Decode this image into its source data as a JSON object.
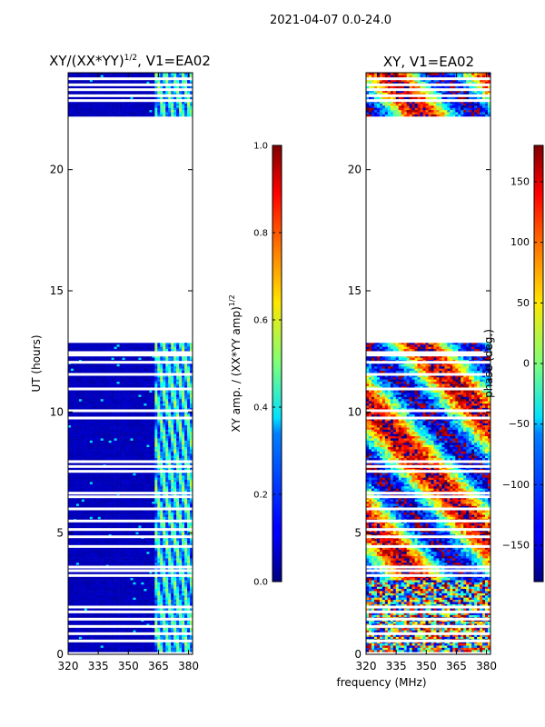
{
  "figure": {
    "suptitle": "2021-04-07 0.0-24.0",
    "shared_xlabel": "frequency (MHz)"
  },
  "chart_data": [
    {
      "type": "heatmap",
      "title_main": "XY/(XX*YY)",
      "title_sup": "1/2",
      "title_tail": ", V1=EA02",
      "ylabel": "UT (hours)",
      "xlim": [
        320,
        382
      ],
      "ylim": [
        0,
        24
      ],
      "xticks": [
        320,
        335,
        350,
        365,
        380
      ],
      "yticks": [
        0,
        5,
        10,
        15,
        20
      ],
      "colormap": "jet",
      "colorbar": {
        "label_main": "XY amp. / (XX*YY amp)",
        "label_sup": "1/2",
        "min": 0.0,
        "max": 1.0,
        "ticks": [
          "0.0",
          "0.2",
          "0.4",
          "0.6",
          "0.8",
          "1.0"
        ],
        "tick_values": [
          0.0,
          0.2,
          0.4,
          0.6,
          0.8,
          1.0
        ]
      },
      "data_coverage_hours": [
        [
          0.1,
          12.85
        ],
        [
          22.2,
          24.0
        ]
      ],
      "gap_hours": [
        0.55,
        0.85,
        1.15,
        1.45,
        1.75,
        1.95,
        3.25,
        3.45,
        3.6,
        4.45,
        4.85,
        5.15,
        5.5,
        6.0,
        6.5,
        6.65,
        7.55,
        7.75,
        7.95,
        9.75,
        10.05,
        10.95,
        11.55,
        12.05,
        12.35,
        12.45,
        22.85,
        23.05,
        23.3,
        23.5,
        23.75
      ],
      "value_profile": "mostly low amplitude (~0.05) below 363 MHz; elevated amplitude (~0.3-0.6) between 363 and 382 MHz with streaks"
    },
    {
      "type": "heatmap",
      "title_main": "XY, V1=EA02",
      "ylim": [
        0,
        24
      ],
      "xlim": [
        320,
        382
      ],
      "xticks": [
        320,
        335,
        350,
        365,
        380
      ],
      "yticks": [
        0,
        5,
        10,
        15,
        20
      ],
      "colormap": "jet",
      "colorbar": {
        "label_main": "phase (deg.)",
        "min": -180,
        "max": 180,
        "ticks": [
          "−150",
          "−100",
          "−50",
          "0",
          "50",
          "100",
          "150"
        ],
        "tick_values": [
          -150,
          -100,
          -50,
          0,
          50,
          100,
          150
        ]
      },
      "data_coverage_hours": [
        [
          0.1,
          12.85
        ],
        [
          22.2,
          24.0
        ]
      ],
      "gap_hours": [
        0.55,
        0.85,
        1.15,
        1.45,
        1.75,
        1.95,
        3.25,
        3.45,
        3.6,
        4.45,
        4.85,
        5.15,
        5.5,
        6.0,
        6.5,
        6.65,
        7.55,
        7.75,
        7.95,
        9.75,
        10.05,
        10.95,
        11.55,
        12.05,
        12.35,
        12.45,
        22.85,
        23.05,
        23.3,
        23.5,
        23.75
      ],
      "value_profile": "wrapped phase spanning full -180..180 deg range; noisy below 3 h, structured fringes 3-13 h and 22-24 h"
    }
  ]
}
